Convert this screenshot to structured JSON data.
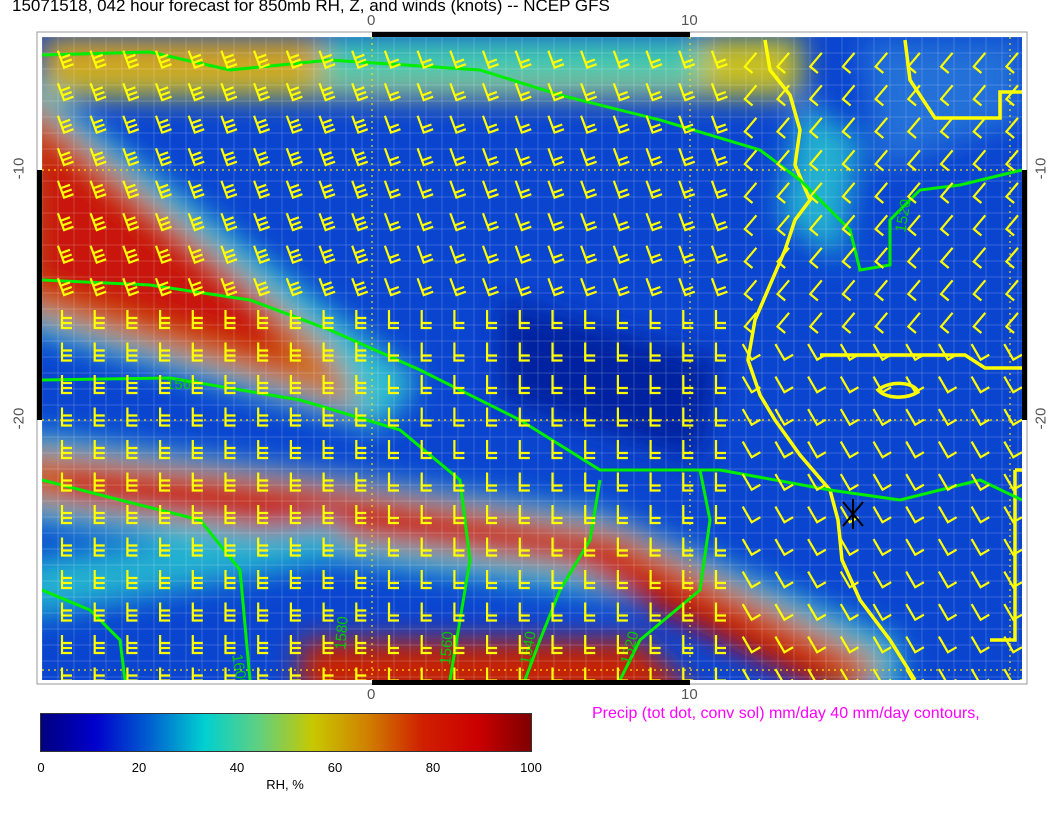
{
  "title": "15071518, 042 hour forecast for 850mb RH, Z, and winds (knots)  -- NCEP GFS",
  "axes": {
    "top_ticks": [
      "0",
      "10"
    ],
    "bottom_ticks": [
      "0",
      "10"
    ],
    "left_ticks": [
      "-10",
      "-20"
    ],
    "right_ticks": [
      "-10",
      "-20"
    ]
  },
  "contour_labels": [
    "1560",
    "1520",
    "1600",
    "1580",
    "1560",
    "1540",
    "1520"
  ],
  "precip_caption": "Precip (tot dot, conv sol) mm/day 40 mm/day contours,",
  "colorbar": {
    "label": "RH, %",
    "ticks": [
      "0",
      "20",
      "40",
      "60",
      "80",
      "100"
    ],
    "colors": [
      "#00007f",
      "#0000cc",
      "#0060d0",
      "#00d0d0",
      "#60d080",
      "#c8c800",
      "#d08000",
      "#d02000",
      "#cc0000",
      "#7f0000"
    ]
  },
  "colors": {
    "wind_barbs": "#ffff00",
    "coastline": "#ffff00",
    "height_contours": "#00ff00",
    "precip_text": "#ff00ff"
  }
}
